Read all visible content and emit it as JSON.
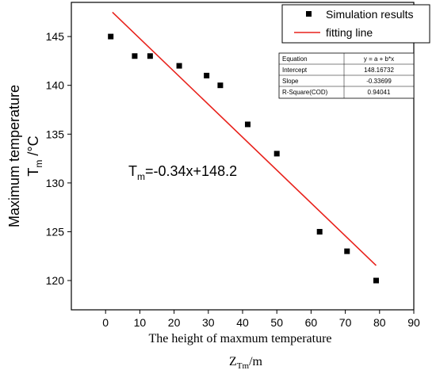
{
  "chart_data": {
    "type": "scatter",
    "xlabel_line1": "The height of maxmum temperature",
    "xlabel_line2": "Z",
    "xlabel_sub": "Tm",
    "xlabel_unit": "/m",
    "ylabel_line1": "Maximum temperature",
    "ylabel_line2": "T",
    "ylabel_sub": "m",
    "ylabel_unit": " /°C",
    "xlim": [
      -10,
      90
    ],
    "ylim": [
      117,
      148.5
    ],
    "xticks": [
      0,
      10,
      20,
      30,
      40,
      50,
      60,
      70,
      80,
      90
    ],
    "yticks": [
      120,
      125,
      130,
      135,
      140,
      145
    ],
    "series": [
      {
        "name": "Simulation results",
        "kind": "scatter",
        "marker": "square",
        "color": "#000000",
        "x": [
          1.5,
          8.5,
          13,
          21.5,
          29.5,
          33.5,
          41.5,
          50,
          62.5,
          70.5,
          79
        ],
        "y": [
          145,
          143,
          143,
          142,
          141,
          140,
          136,
          133,
          125,
          123,
          120
        ]
      },
      {
        "name": "fitting line",
        "kind": "line",
        "color": "#e8211b",
        "x": [
          2,
          79
        ],
        "y": [
          147.49,
          121.54
        ]
      }
    ],
    "annotation": {
      "prefix": "T",
      "sub": "m",
      "rest": "=-0.34x+148.2"
    },
    "fit_table": [
      [
        "Equation",
        "y = a + b*x"
      ],
      [
        "Intercept",
        "148.16732"
      ],
      [
        "Slope",
        "-0.33699"
      ],
      [
        "R-Square(COD)",
        "0.94041"
      ]
    ],
    "legend_position": "top-right"
  }
}
